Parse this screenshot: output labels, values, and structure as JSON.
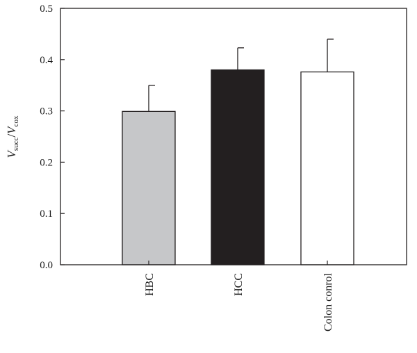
{
  "chart_data": {
    "type": "bar",
    "categories": [
      "HBC",
      "HCC",
      "Colon conrol"
    ],
    "values": [
      0.299,
      0.38,
      0.376
    ],
    "errors": [
      0.051,
      0.043,
      0.064
    ],
    "colors": [
      "#c6c7c9",
      "#231f20",
      "#ffffff"
    ],
    "ylim": [
      0,
      0.5
    ],
    "yticks": [
      "0.0",
      "0.1",
      "0.2",
      "0.3",
      "0.4",
      "0.5"
    ],
    "ylabel": {
      "var1": "V",
      "sub1": "succ",
      "sep": "/",
      "var2": "V",
      "sub2": "cox"
    },
    "grid": false
  }
}
